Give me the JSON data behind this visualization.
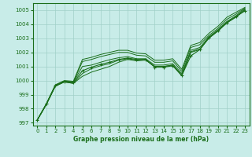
{
  "title": "Graphe pression niveau de la mer (hPa)",
  "bg_color": "#c8ece8",
  "grid_color": "#a0d0c8",
  "line_color": "#1a6e1a",
  "text_color": "#1a6e1a",
  "xlim": [
    -0.5,
    23.5
  ],
  "ylim": [
    996.8,
    1005.5
  ],
  "yticks": [
    997,
    998,
    999,
    1000,
    1001,
    1002,
    1003,
    1004,
    1005
  ],
  "xticks": [
    0,
    1,
    2,
    3,
    4,
    5,
    6,
    7,
    8,
    9,
    10,
    11,
    12,
    13,
    14,
    15,
    16,
    17,
    18,
    19,
    20,
    21,
    22,
    23
  ],
  "lines": [
    [
      997.2,
      998.3,
      999.6,
      999.9,
      999.8,
      1000.3,
      1000.6,
      1000.8,
      1001.0,
      1001.3,
      1001.5,
      1001.4,
      1001.45,
      1001.0,
      1001.0,
      1001.1,
      1000.35,
      1002.0,
      1002.2,
      1003.0,
      1003.5,
      1004.1,
      1004.5,
      1005.0
    ],
    [
      997.2,
      998.3,
      999.6,
      999.9,
      999.8,
      1000.5,
      1000.85,
      1001.05,
      1001.2,
      1001.45,
      1001.55,
      1001.45,
      1001.5,
      1001.0,
      1001.0,
      1001.1,
      1000.4,
      1002.05,
      1002.25,
      1003.05,
      1003.55,
      1004.15,
      1004.52,
      1005.05
    ],
    [
      997.2,
      998.3,
      999.65,
      999.95,
      999.88,
      1001.0,
      1001.1,
      1001.3,
      1001.48,
      1001.62,
      1001.7,
      1001.55,
      1001.55,
      1001.1,
      1001.1,
      1001.2,
      1000.5,
      1002.15,
      1002.35,
      1003.1,
      1003.6,
      1004.2,
      1004.6,
      1005.1
    ],
    [
      997.2,
      998.3,
      999.65,
      999.95,
      999.9,
      1001.35,
      1001.5,
      1001.7,
      1001.85,
      1002.0,
      1002.0,
      1001.8,
      1001.75,
      1001.3,
      1001.3,
      1001.4,
      1000.65,
      1002.35,
      1002.55,
      1003.2,
      1003.7,
      1004.35,
      1004.72,
      1005.15
    ],
    [
      997.2,
      998.35,
      999.7,
      1000.0,
      999.95,
      1001.5,
      1001.65,
      1001.85,
      1002.0,
      1002.15,
      1002.15,
      1001.95,
      1001.9,
      1001.45,
      1001.45,
      1001.55,
      1000.8,
      1002.5,
      1002.7,
      1003.35,
      1003.85,
      1004.5,
      1004.85,
      1005.2
    ]
  ],
  "main_line": [
    997.2,
    998.35,
    999.65,
    999.95,
    999.85,
    1000.7,
    1000.95,
    1001.15,
    1001.3,
    1001.5,
    1001.6,
    1001.5,
    1001.5,
    1000.95,
    1000.95,
    1001.05,
    1000.35,
    1001.75,
    1002.2,
    1003.05,
    1003.55,
    1004.1,
    1004.55,
    1004.95
  ],
  "figsize": [
    3.2,
    2.0
  ],
  "dpi": 100
}
